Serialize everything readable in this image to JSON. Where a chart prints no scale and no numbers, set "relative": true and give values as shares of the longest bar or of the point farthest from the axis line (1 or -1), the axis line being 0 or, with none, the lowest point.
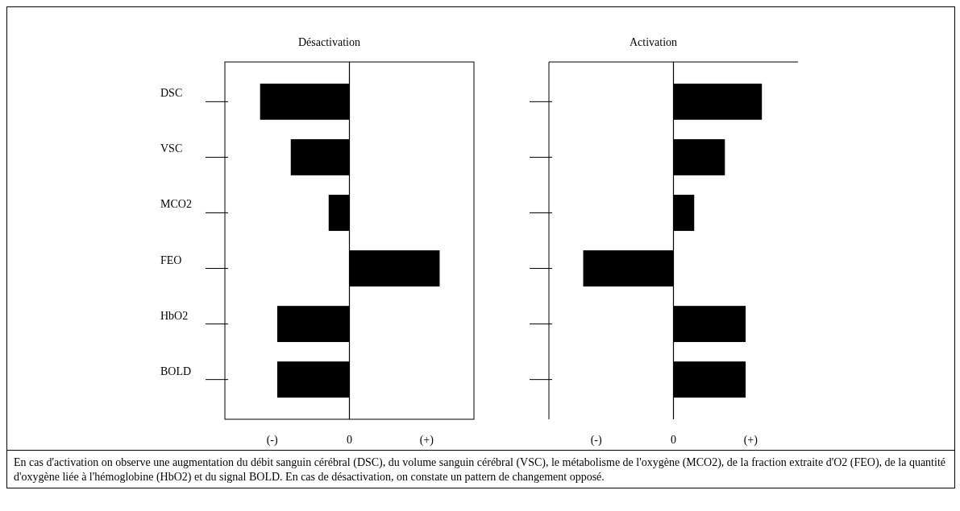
{
  "chart_data": [
    {
      "type": "bar",
      "orientation": "horizontal",
      "relative": true,
      "title": "Désactivation",
      "categories": [
        "DSC",
        "VSC",
        "MCO2",
        "FEO",
        "HbO2",
        "BOLD"
      ],
      "values": [
        -0.99,
        -0.65,
        -0.23,
        1,
        -0.8,
        -0.8
      ],
      "color": "#000000",
      "annotations": [
        "(-)",
        "0",
        "(+)"
      ]
    },
    {
      "type": "bar",
      "orientation": "horizontal",
      "relative": true,
      "title": "Activation",
      "categories": [
        null,
        null,
        null,
        null,
        null,
        null
      ],
      "values": [
        0.98,
        0.57,
        0.23,
        -1,
        0.8,
        0.8
      ],
      "color": "#000000",
      "annotations": [
        "(-)",
        "0",
        "(+)",
        "En cas d'activation on observe une augmentation du débit sanguin cérébral (DSC), du volume sanguin cérébral (VSC), le métabolisme de l'oxygène (MCO2), de la fraction extraite d'O2 (FEO), de la quantité d'oxygène liée à l'hémoglobine (HbO2) et du signal BOLD. En cas de désactivation, on constate un pattern de changement opposé."
      ]
    }
  ]
}
